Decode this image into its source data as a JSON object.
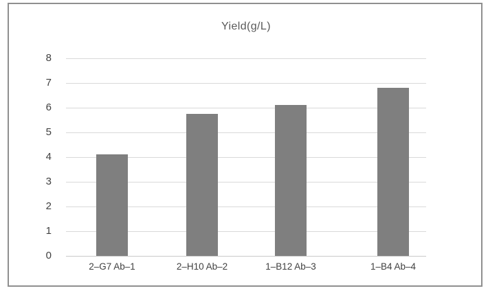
{
  "page": {
    "background_color": "#ffffff",
    "frame_border_color": "#8f8f8f"
  },
  "chart_data": {
    "type": "bar",
    "title": "Yield(g/L)",
    "categories": [
      "2–G7 Ab–1",
      "2–H10 Ab–2",
      "1–B12 Ab–3",
      "1–B4 Ab–4"
    ],
    "values": [
      4.1,
      5.75,
      6.1,
      6.8
    ],
    "xlabel": "",
    "ylabel": "",
    "ylim": [
      0,
      8
    ],
    "yticks": [
      0,
      1,
      2,
      3,
      4,
      5,
      6,
      7,
      8
    ],
    "grid": "horizontal",
    "legend": "none",
    "bar_color": "#7f7f7f",
    "gridline_color": "#d9d9d9",
    "title_color": "#595959",
    "tick_label_color": "#404040"
  }
}
